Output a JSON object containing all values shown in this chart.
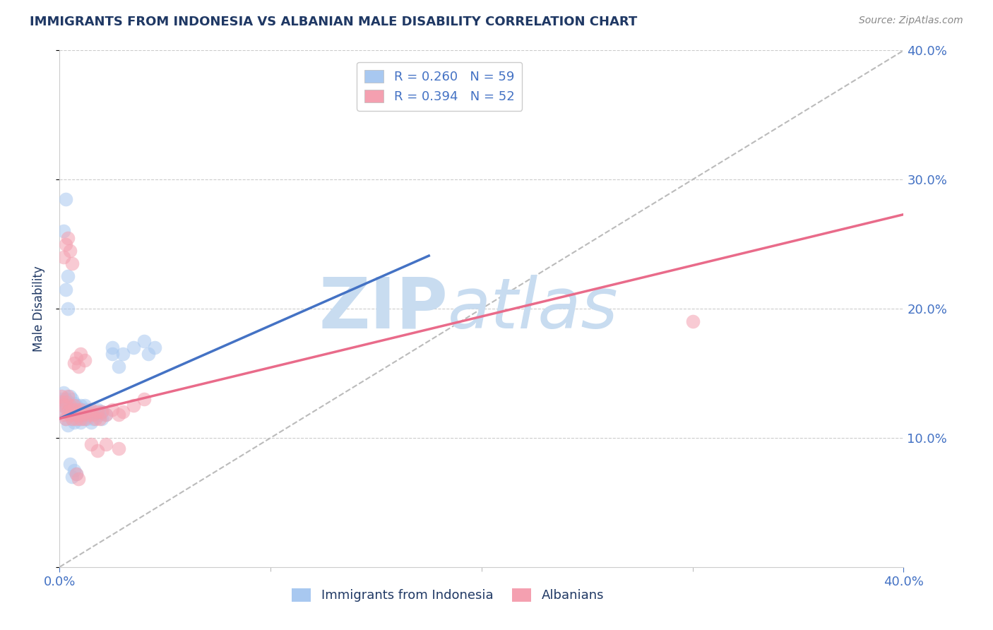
{
  "title": "IMMIGRANTS FROM INDONESIA VS ALBANIAN MALE DISABILITY CORRELATION CHART",
  "source": "Source: ZipAtlas.com",
  "ylabel": "Male Disability",
  "watermark": "ZIPAtlas",
  "xlim": [
    0.0,
    0.4
  ],
  "ylim": [
    0.0,
    0.4
  ],
  "legend_entries": [
    {
      "label": "R = 0.260   N = 59",
      "color": "#A8C8F0"
    },
    {
      "label": "R = 0.394   N = 52",
      "color": "#F4A0B0"
    }
  ],
  "legend_bottom_labels": [
    "Immigrants from Indonesia",
    "Albanians"
  ],
  "blue_scatter_x": [
    0.001,
    0.001,
    0.002,
    0.002,
    0.003,
    0.003,
    0.003,
    0.004,
    0.004,
    0.004,
    0.005,
    0.005,
    0.005,
    0.006,
    0.006,
    0.006,
    0.007,
    0.007,
    0.007,
    0.008,
    0.008,
    0.009,
    0.009,
    0.01,
    0.01,
    0.01,
    0.011,
    0.011,
    0.012,
    0.012,
    0.013,
    0.013,
    0.014,
    0.015,
    0.015,
    0.016,
    0.017,
    0.018,
    0.019,
    0.02,
    0.02,
    0.022,
    0.025,
    0.025,
    0.028,
    0.03,
    0.035,
    0.04,
    0.042,
    0.045,
    0.002,
    0.003,
    0.003,
    0.004,
    0.004,
    0.005,
    0.006,
    0.007,
    0.008
  ],
  "blue_scatter_y": [
    0.125,
    0.13,
    0.12,
    0.135,
    0.115,
    0.125,
    0.13,
    0.11,
    0.12,
    0.128,
    0.118,
    0.125,
    0.132,
    0.115,
    0.122,
    0.13,
    0.112,
    0.12,
    0.127,
    0.118,
    0.125,
    0.115,
    0.122,
    0.112,
    0.118,
    0.125,
    0.115,
    0.122,
    0.118,
    0.125,
    0.115,
    0.122,
    0.118,
    0.112,
    0.12,
    0.115,
    0.118,
    0.122,
    0.118,
    0.12,
    0.115,
    0.118,
    0.165,
    0.17,
    0.155,
    0.165,
    0.17,
    0.175,
    0.165,
    0.17,
    0.26,
    0.285,
    0.215,
    0.225,
    0.2,
    0.08,
    0.07,
    0.075,
    0.072
  ],
  "pink_scatter_x": [
    0.001,
    0.001,
    0.002,
    0.002,
    0.003,
    0.003,
    0.004,
    0.004,
    0.005,
    0.005,
    0.006,
    0.006,
    0.007,
    0.007,
    0.008,
    0.008,
    0.009,
    0.01,
    0.01,
    0.011,
    0.012,
    0.013,
    0.014,
    0.015,
    0.016,
    0.017,
    0.018,
    0.019,
    0.02,
    0.022,
    0.025,
    0.028,
    0.03,
    0.035,
    0.04,
    0.3,
    0.002,
    0.003,
    0.004,
    0.005,
    0.006,
    0.007,
    0.008,
    0.009,
    0.01,
    0.012,
    0.015,
    0.018,
    0.022,
    0.028,
    0.008,
    0.009
  ],
  "pink_scatter_y": [
    0.132,
    0.128,
    0.118,
    0.125,
    0.115,
    0.128,
    0.12,
    0.132,
    0.118,
    0.125,
    0.115,
    0.122,
    0.118,
    0.125,
    0.115,
    0.122,
    0.118,
    0.115,
    0.122,
    0.118,
    0.115,
    0.12,
    0.118,
    0.122,
    0.118,
    0.115,
    0.12,
    0.115,
    0.12,
    0.118,
    0.122,
    0.118,
    0.12,
    0.125,
    0.13,
    0.19,
    0.24,
    0.25,
    0.255,
    0.245,
    0.235,
    0.158,
    0.162,
    0.155,
    0.165,
    0.16,
    0.095,
    0.09,
    0.095,
    0.092,
    0.072,
    0.068
  ],
  "blue_line_x_start": 0.0,
  "blue_line_x_end": 0.175,
  "blue_line_y_intercept": 0.115,
  "blue_line_slope": 0.72,
  "pink_line_x_start": 0.0,
  "pink_line_x_end": 0.4,
  "pink_line_y_intercept": 0.115,
  "pink_line_slope": 0.395,
  "scatter_alpha": 0.55,
  "scatter_size": 200,
  "blue_color": "#A8C8F0",
  "pink_color": "#F4A0B0",
  "blue_line_color": "#4472C4",
  "pink_line_color": "#E96B8A",
  "diagonal_color": "#BBBBBB",
  "grid_color": "#CCCCCC",
  "title_color": "#1F3864",
  "tick_color": "#4472C4",
  "watermark_color": "#C8DCF0",
  "background_color": "#FFFFFF"
}
